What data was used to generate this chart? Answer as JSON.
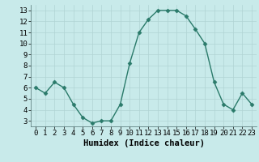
{
  "x": [
    0,
    1,
    2,
    3,
    4,
    5,
    6,
    7,
    8,
    9,
    10,
    11,
    12,
    13,
    14,
    15,
    16,
    17,
    18,
    19,
    20,
    21,
    22,
    23
  ],
  "y": [
    6.0,
    5.5,
    6.5,
    6.0,
    4.5,
    3.3,
    2.8,
    3.0,
    3.0,
    4.5,
    8.2,
    11.0,
    12.2,
    13.0,
    13.0,
    13.0,
    12.5,
    11.3,
    10.0,
    6.5,
    4.5,
    4.0,
    5.5,
    4.5
  ],
  "line_color": "#2a7a6a",
  "marker": "D",
  "marker_size": 2.5,
  "bg_color": "#c8eaea",
  "grid_color": "#b0d4d4",
  "xlabel": "Humidex (Indice chaleur)",
  "ylim": [
    2.5,
    13.5
  ],
  "xlim": [
    -0.5,
    23.5
  ],
  "yticks": [
    3,
    4,
    5,
    6,
    7,
    8,
    9,
    10,
    11,
    12,
    13
  ],
  "xticks": [
    0,
    1,
    2,
    3,
    4,
    5,
    6,
    7,
    8,
    9,
    10,
    11,
    12,
    13,
    14,
    15,
    16,
    17,
    18,
    19,
    20,
    21,
    22,
    23
  ],
  "tick_fontsize": 6.5,
  "xlabel_fontsize": 7.5,
  "line_width": 1.0
}
